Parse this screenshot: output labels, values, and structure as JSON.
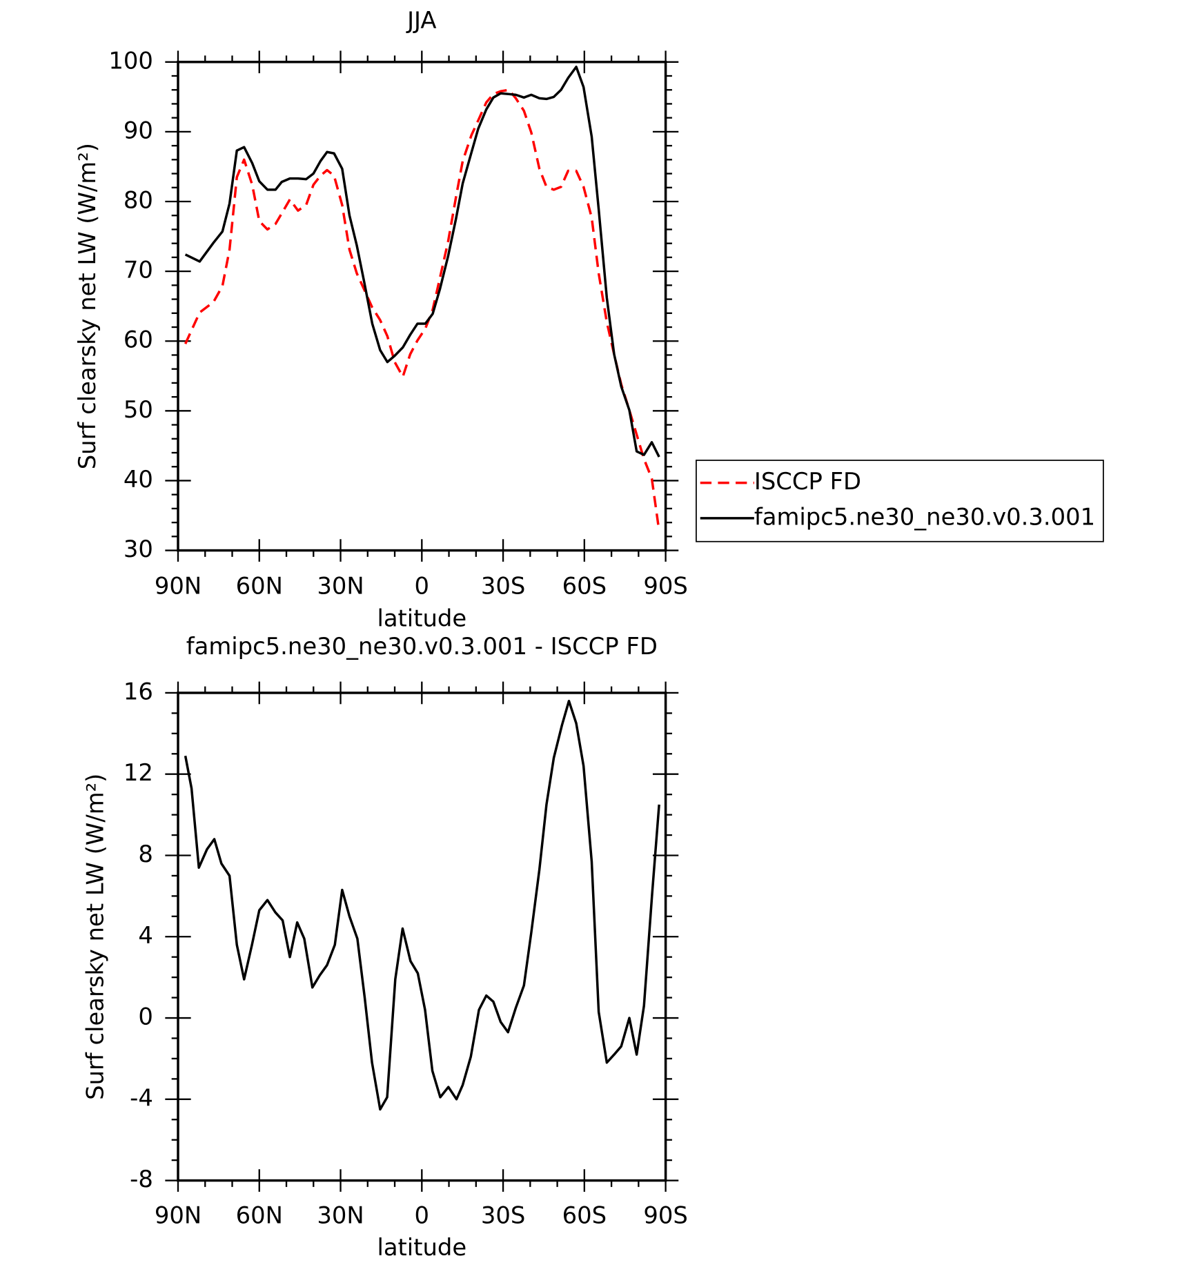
{
  "chart_data": [
    {
      "type": "line",
      "title": "JJA",
      "xlabel": "latitude",
      "ylabel": "Surf clearsky net LW (W/m²)",
      "xlim": [
        90,
        -90
      ],
      "xticks": [
        {
          "value": 90,
          "label": "90N"
        },
        {
          "value": 60,
          "label": "60N"
        },
        {
          "value": 30,
          "label": "30N"
        },
        0,
        {
          "value": -30,
          "label": "30S"
        },
        {
          "value": -60,
          "label": "60S"
        },
        {
          "value": -90,
          "label": "90S"
        }
      ],
      "ylim": [
        30,
        100
      ],
      "yticks": [
        30,
        40,
        50,
        60,
        70,
        80,
        90,
        100
      ],
      "legend": "right",
      "x": [
        87.3,
        82.0,
        76.9,
        73.6,
        71.0,
        68.3,
        65.6,
        62.6,
        60.0,
        57.0,
        54.0,
        51.7,
        48.7,
        45.7,
        42.7,
        40.0,
        37.4,
        35.0,
        32.4,
        29.4,
        26.7,
        24.0,
        21.3,
        18.3,
        15.4,
        12.7,
        10.0,
        7.0,
        4.3,
        1.6,
        -1.3,
        -4.0,
        -6.7,
        -9.7,
        -12.6,
        -15.1,
        -18.3,
        -20.8,
        -23.8,
        -26.4,
        -29.1,
        -32.1,
        -34.7,
        -37.7,
        -40.4,
        -43.4,
        -46.0,
        -48.7,
        -51.4,
        -54.0,
        -57.0,
        -59.7,
        -62.7,
        -65.3,
        -68.3,
        -71.0,
        -73.6,
        -76.6,
        -79.3,
        -82.0,
        -84.9,
        -87.6
      ],
      "series": [
        {
          "name": "ISCCP FD",
          "color": "#ff0000",
          "style": "dashed",
          "values": [
            59.6,
            64.1,
            65.6,
            67.9,
            73.1,
            83.5,
            86.0,
            82.4,
            77.2,
            76.0,
            76.8,
            78.3,
            80.3,
            78.7,
            79.5,
            82.4,
            83.7,
            84.5,
            83.7,
            79.5,
            73.1,
            69.7,
            67.4,
            64.8,
            63.0,
            60.7,
            57.0,
            54.9,
            58.1,
            60.1,
            61.8,
            64.5,
            69.1,
            74.3,
            80.6,
            85.8,
            89.5,
            91.6,
            94.2,
            95.4,
            95.8,
            96.0,
            94.8,
            93.0,
            89.9,
            84.7,
            82.1,
            81.7,
            82.1,
            84.4,
            84.4,
            82.1,
            77.7,
            69.7,
            62.7,
            58.1,
            53.8,
            50.1,
            46.6,
            43.1,
            40.3,
            32.8
          ]
        },
        {
          "name": "famipc5.ne30_ne30.v0.3.001",
          "color": "#000000",
          "style": "solid",
          "values": [
            72.4,
            71.4,
            74.1,
            75.7,
            79.7,
            87.3,
            87.8,
            85.5,
            82.9,
            81.7,
            81.7,
            82.8,
            83.3,
            83.3,
            83.2,
            84.0,
            85.8,
            87.1,
            86.9,
            84.7,
            78.0,
            73.7,
            68.5,
            62.5,
            58.7,
            57.0,
            57.9,
            59.1,
            60.9,
            62.5,
            62.5,
            63.9,
            67.5,
            72.2,
            77.5,
            82.6,
            87.0,
            90.4,
            93.2,
            94.9,
            95.5,
            95.4,
            95.3,
            94.9,
            95.3,
            94.8,
            94.7,
            95.0,
            96.0,
            97.7,
            99.3,
            96.4,
            89.3,
            78.9,
            66.2,
            58.1,
            53.5,
            50.1,
            44.2,
            43.7,
            45.5,
            43.4
          ]
        }
      ]
    },
    {
      "type": "line",
      "title": "famipc5.ne30_ne30.v0.3.001 - ISCCP FD",
      "xlabel": "latitude",
      "ylabel": "Surf clearsky net LW (W/m²)",
      "xlim": [
        90,
        -90
      ],
      "xticks": [
        {
          "value": 90,
          "label": "90N"
        },
        {
          "value": 60,
          "label": "60N"
        },
        {
          "value": 30,
          "label": "30N"
        },
        0,
        {
          "value": -30,
          "label": "30S"
        },
        {
          "value": -60,
          "label": "60S"
        },
        {
          "value": -90,
          "label": "90S"
        }
      ],
      "ylim": [
        -8,
        16
      ],
      "yticks": [
        -8,
        -4,
        0,
        4,
        8,
        12,
        16
      ],
      "x": [
        87.3,
        85.0,
        82.3,
        79.3,
        76.6,
        74.0,
        71.0,
        68.3,
        65.6,
        62.7,
        60.0,
        57.0,
        54.1,
        51.4,
        48.7,
        46.0,
        43.4,
        40.4,
        37.7,
        35.0,
        32.1,
        29.4,
        26.7,
        23.8,
        21.1,
        18.4,
        15.4,
        12.8,
        9.8,
        7.1,
        4.2,
        1.5,
        -1.2,
        -3.9,
        -6.8,
        -9.8,
        -12.8,
        -15.1,
        -18.1,
        -21.1,
        -23.8,
        -26.4,
        -29.1,
        -31.8,
        -34.7,
        -37.7,
        -40.4,
        -43.4,
        -46.0,
        -48.7,
        -51.7,
        -54.3,
        -57.0,
        -59.7,
        -62.7,
        -65.3,
        -68.3,
        -71.0,
        -73.6,
        -76.6,
        -79.3,
        -82.0,
        -85.0,
        -87.6
      ],
      "series": [
        {
          "color": "#000000",
          "style": "solid",
          "values": [
            12.9,
            11.3,
            7.4,
            8.3,
            8.8,
            7.6,
            7.0,
            3.6,
            1.9,
            3.6,
            5.3,
            5.8,
            5.2,
            4.8,
            3.0,
            4.7,
            3.9,
            1.5,
            2.1,
            2.6,
            3.6,
            6.3,
            5.0,
            3.9,
            1.0,
            -2.2,
            -4.5,
            -3.9,
            1.9,
            4.4,
            2.8,
            2.2,
            0.4,
            -2.6,
            -3.9,
            -3.4,
            -4.0,
            -3.3,
            -1.9,
            0.4,
            1.1,
            0.8,
            -0.2,
            -0.7,
            0.5,
            1.6,
            4.2,
            7.3,
            10.5,
            12.8,
            14.4,
            15.6,
            14.5,
            12.4,
            7.7,
            0.3,
            -2.2,
            -1.8,
            -1.4,
            0.0,
            -1.8,
            0.6,
            6.1,
            10.5
          ]
        }
      ]
    }
  ]
}
